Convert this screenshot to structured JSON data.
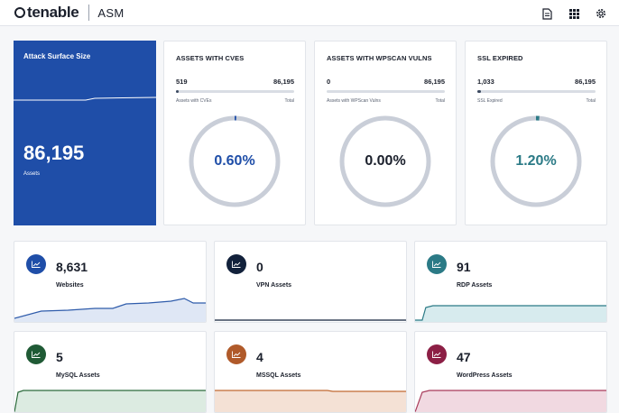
{
  "header": {
    "brand": "tenable",
    "product": "ASM",
    "icons": [
      "document-icon",
      "grid-icon",
      "gear-icon"
    ]
  },
  "hero": {
    "title": "Attack Surface Size",
    "value": "86,195",
    "sublabel": "Assets",
    "color": "#1f4ea8"
  },
  "cve_cards": [
    {
      "title": "ASSETS WITH CVES",
      "left_value": "519",
      "right_value": "86,195",
      "left_label": "Assets with CVEs",
      "right_label": "Total",
      "fraction": 0.006,
      "percent": "0.60%",
      "color": "#1f4ea8"
    },
    {
      "title": "ASSETS WITH WPSCAN VULNS",
      "left_value": "0",
      "right_value": "86,195",
      "left_label": "Assets with WPScan Vulns",
      "right_label": "Total",
      "fraction": 0.0,
      "percent": "0.00%",
      "color": "#1a1f2b"
    },
    {
      "title": "SSL EXPIRED",
      "left_value": "1,033",
      "right_value": "86,195",
      "left_label": "SSL Expired",
      "right_label": "Total",
      "fraction": 0.012,
      "percent": "1.20%",
      "color": "#2b7a86"
    }
  ],
  "metrics": [
    {
      "value": "8,631",
      "label": "Websites",
      "color": "#1f4ea8",
      "line": "#2f5cab"
    },
    {
      "value": "0",
      "label": "VPN Assets",
      "color": "#12213b",
      "line": "#12213b"
    },
    {
      "value": "91",
      "label": "RDP Assets",
      "color": "#2b7a86",
      "line": "#2b7a86"
    },
    {
      "value": "5",
      "label": "MySQL Assets",
      "color": "#1f5a35",
      "line": "#2c6b3c"
    },
    {
      "value": "4",
      "label": "MSSQL Assets",
      "color": "#b05a2a",
      "line": "#c06a33"
    },
    {
      "value": "47",
      "label": "WordPress Assets",
      "color": "#8c1f45",
      "line": "#a83a5a"
    }
  ]
}
